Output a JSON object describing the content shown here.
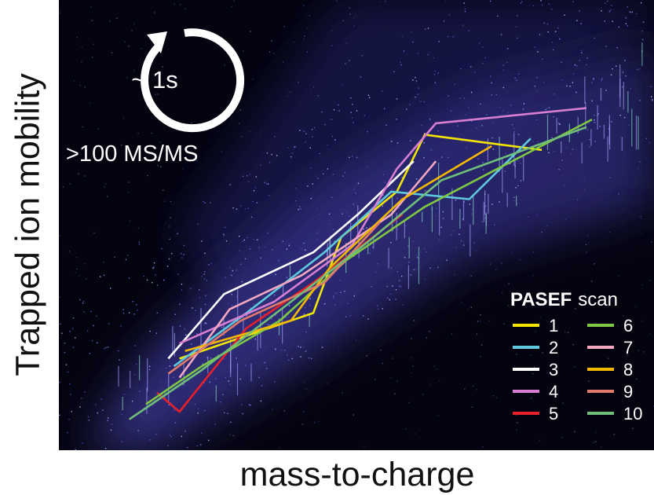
{
  "chart_data": {
    "type": "line",
    "title": "",
    "xlabel": "mass-to-charge",
    "ylabel": "Trapped ion mobility",
    "xlim": [
      0,
      100
    ],
    "ylim": [
      0,
      100
    ],
    "grid": false,
    "legend_placement": "bottom-right",
    "legend_title_bold": "PASEF",
    "legend_title_rest": "scan",
    "cycle_label": "~ 1s",
    "rate_label": ">100 MS/MS",
    "background": "dense ion cloud (blue-purple speckle) along diagonal band",
    "series": [
      {
        "name": "1",
        "color": "#f2e600",
        "points": [
          [
            16,
            20
          ],
          [
            40,
            32
          ],
          [
            45,
            52
          ],
          [
            55,
            64
          ],
          [
            60,
            79
          ],
          [
            81,
            75
          ]
        ]
      },
      {
        "name": "2",
        "color": "#5ec8dc",
        "points": [
          [
            15,
            18
          ],
          [
            28,
            32
          ],
          [
            42,
            48
          ],
          [
            54,
            64
          ],
          [
            68,
            62
          ],
          [
            79,
            78
          ]
        ]
      },
      {
        "name": "3",
        "color": "#ffffff",
        "points": [
          [
            14,
            20
          ],
          [
            24,
            37
          ],
          [
            40,
            48
          ],
          [
            48,
            58
          ],
          [
            58,
            72
          ]
        ]
      },
      {
        "name": "4",
        "color": "#d77ed2",
        "points": [
          [
            16,
            24
          ],
          [
            33,
            35
          ],
          [
            47,
            50
          ],
          [
            55,
            70
          ],
          [
            62,
            82
          ],
          [
            89,
            86
          ]
        ]
      },
      {
        "name": "5",
        "color": "#e8202a",
        "points": [
          [
            12,
            11
          ],
          [
            16,
            6
          ],
          [
            28,
            28
          ],
          [
            40,
            40
          ],
          [
            56,
            58
          ]
        ]
      },
      {
        "name": "6",
        "color": "#7ec843",
        "points": [
          [
            10,
            8
          ],
          [
            20,
            18
          ],
          [
            34,
            30
          ],
          [
            46,
            46
          ],
          [
            60,
            60
          ],
          [
            90,
            83
          ]
        ]
      },
      {
        "name": "7",
        "color": "#f4a7c0",
        "points": [
          [
            16,
            15
          ],
          [
            25,
            33
          ],
          [
            38,
            42
          ],
          [
            54,
            58
          ],
          [
            62,
            72
          ]
        ]
      },
      {
        "name": "8",
        "color": "#f5b800",
        "points": [
          [
            17,
            22
          ],
          [
            36,
            30
          ],
          [
            43,
            44
          ],
          [
            56,
            62
          ],
          [
            72,
            76
          ]
        ]
      },
      {
        "name": "9",
        "color": "#e07a6a",
        "points": [
          [
            14,
            16
          ],
          [
            27,
            30
          ],
          [
            42,
            40
          ],
          [
            52,
            56
          ]
        ]
      },
      {
        "name": "10",
        "color": "#6fbf7a",
        "points": [
          [
            7,
            4
          ],
          [
            20,
            17
          ],
          [
            36,
            35
          ],
          [
            50,
            51
          ],
          [
            63,
            67
          ],
          [
            89,
            81
          ]
        ]
      }
    ]
  }
}
